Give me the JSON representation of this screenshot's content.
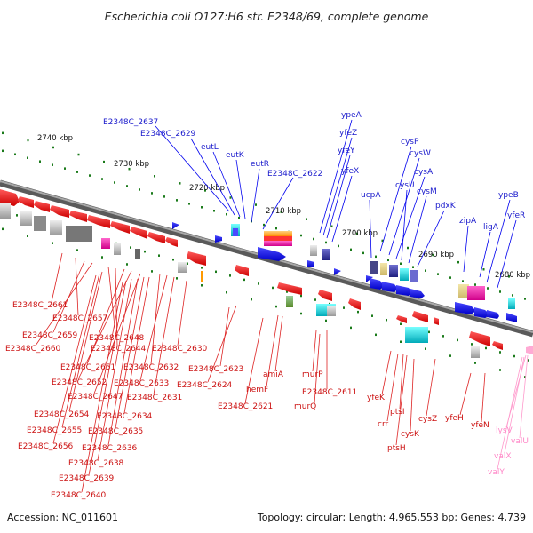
{
  "title": "Escherichia coli O127:H6 str. E2348/69, complete genome",
  "footer": {
    "accession": "Accession: NC_011601",
    "topology": "Topology: circular; Length: 4,965,553 bp; Genes: 4,739"
  },
  "colors": {
    "forward_gene": "#0000ee",
    "reverse_gene": "#ee0000",
    "rna_gene": "#ff99cc",
    "backbone": "#808080",
    "tick": "#1a7a1a"
  },
  "ticks": [
    "2740 kbp",
    "2730 kbp",
    "2720 kbp",
    "2710 kbp",
    "2700 kbp",
    "2690 kbp",
    "2680 kbp"
  ],
  "forward_labels": [
    "E2348C_2637",
    "E2348C_2629",
    "eutL",
    "eutK",
    "eutR",
    "E2348C_2622",
    "ypeA",
    "yfeZ",
    "yfeY",
    "yfeX",
    "ucpA",
    "cysP",
    "cysW",
    "cysA",
    "cysU",
    "cysM",
    "pdxK",
    "zipA",
    "ligA",
    "ypeB",
    "yfeR"
  ],
  "reverse_labels": [
    "E2348C_2661",
    "E2348C_2657",
    "E2348C_2659",
    "E2348C_2660",
    "E2348C_2648",
    "E2348C_2644",
    "E2348C_2630",
    "E2348C_2651",
    "E2348C_2632",
    "E2348C_2652",
    "E2348C_2633",
    "E2348C_2647",
    "E2348C_2631",
    "E2348C_2654",
    "E2348C_2634",
    "E2348C_2655",
    "E2348C_2635",
    "E2348C_2656",
    "E2348C_2636",
    "E2348C_2638",
    "E2348C_2639",
    "E2348C_2640",
    "E2348C_2623",
    "E2348C_2624",
    "amiA",
    "hemF",
    "E2348C_2621",
    "murP",
    "murQ",
    "E2348C_2611",
    "yfeK",
    "crr",
    "ptsI",
    "ptsH",
    "cysK",
    "cysZ",
    "yfeH",
    "yfeN"
  ],
  "rna_labels": [
    "lysV",
    "valU",
    "valX",
    "valY"
  ]
}
